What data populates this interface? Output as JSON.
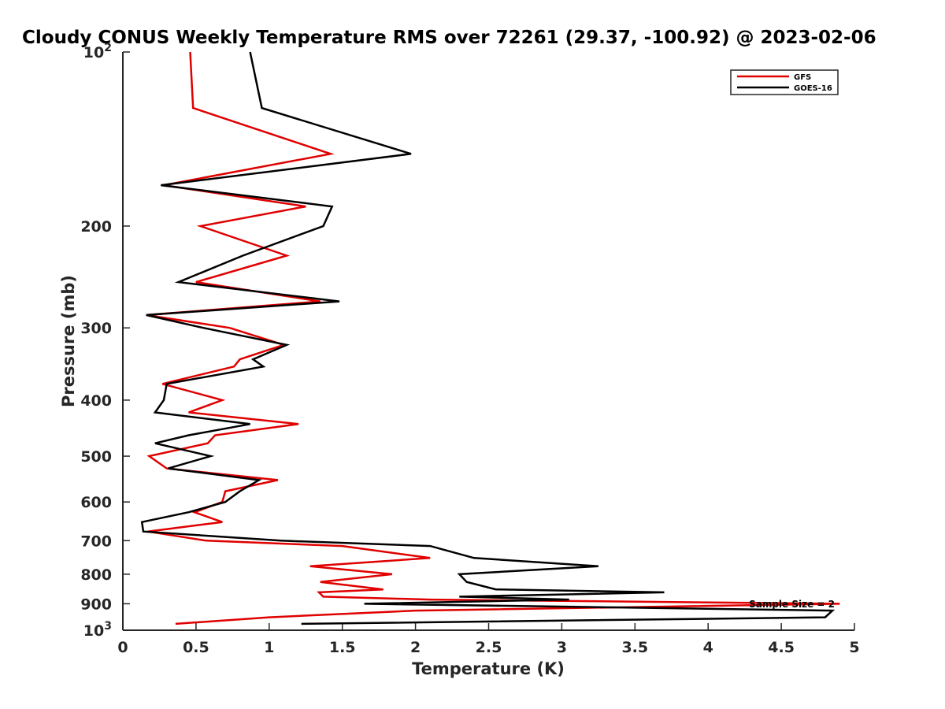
{
  "chart_data": {
    "type": "line",
    "title": "Cloudy CONUS Weekly Temperature RMS over 72261 (29.37, -100.92) @ 2023-02-06",
    "xlabel": "Temperature (K)",
    "ylabel": "Pressure (mb)",
    "xlim": [
      0,
      5
    ],
    "ylim": [
      100,
      1000
    ],
    "y_scale": "log",
    "y_reversed": true,
    "x_ticks": [
      0,
      0.5,
      1,
      1.5,
      2,
      2.5,
      3,
      3.5,
      4,
      4.5,
      5
    ],
    "x_tick_labels": [
      "0",
      "0.5",
      "1",
      "1.5",
      "2",
      "2.5",
      "3",
      "3.5",
      "4",
      "4.5",
      "5"
    ],
    "y_ticks": [
      200,
      300,
      400,
      500,
      600,
      700,
      800,
      900
    ],
    "y_tick_labels": [
      "200",
      "300",
      "400",
      "500",
      "600",
      "700",
      "800",
      "900"
    ],
    "y_extreme_labels": [
      {
        "value": 100,
        "base": "10",
        "exp": "2"
      },
      {
        "value": 1000,
        "base": "10",
        "exp": "3"
      }
    ],
    "grid": false,
    "legend_position": "top-right",
    "annotation": "Sample Size = 2",
    "series": [
      {
        "name": "GFS",
        "color": "#e00000",
        "points": [
          [
            0.46,
            100
          ],
          [
            0.48,
            125
          ],
          [
            1.42,
            150
          ],
          [
            0.28,
            170
          ],
          [
            1.25,
            185
          ],
          [
            0.53,
            200
          ],
          [
            1.12,
            225
          ],
          [
            0.5,
            250
          ],
          [
            1.35,
            270
          ],
          [
            0.16,
            285
          ],
          [
            0.73,
            300
          ],
          [
            1.1,
            321
          ],
          [
            0.8,
            340
          ],
          [
            0.76,
            350
          ],
          [
            0.27,
            375
          ],
          [
            0.68,
            400
          ],
          [
            0.45,
            420
          ],
          [
            1.2,
            440
          ],
          [
            0.63,
            460
          ],
          [
            0.58,
            475
          ],
          [
            0.18,
            500
          ],
          [
            0.3,
            525
          ],
          [
            1.06,
            550
          ],
          [
            0.7,
            575
          ],
          [
            0.68,
            600
          ],
          [
            0.49,
            625
          ],
          [
            0.68,
            650
          ],
          [
            0.17,
            675
          ],
          [
            0.57,
            700
          ],
          [
            1.5,
            715
          ],
          [
            2.1,
            750
          ],
          [
            1.28,
            775
          ],
          [
            1.84,
            800
          ],
          [
            1.35,
            825
          ],
          [
            1.78,
            850
          ],
          [
            1.34,
            860
          ],
          [
            1.37,
            875
          ],
          [
            2.1,
            885
          ],
          [
            4.9,
            900
          ],
          [
            2.0,
            925
          ],
          [
            1.0,
            950
          ],
          [
            0.36,
            975
          ]
        ]
      },
      {
        "name": "GOES-16",
        "color": "#000000",
        "points": [
          [
            0.87,
            100
          ],
          [
            0.95,
            125
          ],
          [
            1.97,
            150
          ],
          [
            0.26,
            170
          ],
          [
            1.43,
            185
          ],
          [
            1.37,
            200
          ],
          [
            0.82,
            225
          ],
          [
            0.38,
            250
          ],
          [
            1.48,
            270
          ],
          [
            0.16,
            285
          ],
          [
            0.55,
            300
          ],
          [
            1.12,
            321
          ],
          [
            0.89,
            340
          ],
          [
            0.96,
            350
          ],
          [
            0.3,
            375
          ],
          [
            0.28,
            400
          ],
          [
            0.22,
            420
          ],
          [
            0.87,
            440
          ],
          [
            0.45,
            460
          ],
          [
            0.22,
            475
          ],
          [
            0.6,
            500
          ],
          [
            0.31,
            525
          ],
          [
            0.93,
            550
          ],
          [
            0.8,
            575
          ],
          [
            0.7,
            600
          ],
          [
            0.45,
            625
          ],
          [
            0.13,
            650
          ],
          [
            0.14,
            675
          ],
          [
            1.08,
            700
          ],
          [
            2.1,
            715
          ],
          [
            2.4,
            750
          ],
          [
            3.25,
            775
          ],
          [
            2.3,
            800
          ],
          [
            2.35,
            825
          ],
          [
            2.55,
            850
          ],
          [
            3.7,
            860
          ],
          [
            2.3,
            875
          ],
          [
            3.05,
            885
          ],
          [
            1.65,
            900
          ],
          [
            4.85,
            925
          ],
          [
            4.8,
            950
          ],
          [
            1.22,
            975
          ]
        ]
      }
    ]
  }
}
